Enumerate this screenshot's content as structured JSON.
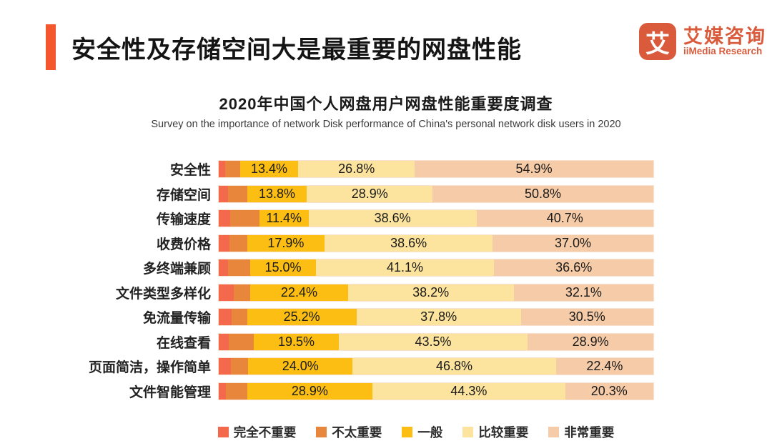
{
  "header": {
    "title": "安全性及存储空间大是最重要的网盘性能",
    "accent_color": "#F4572E"
  },
  "logo": {
    "icon_char": "艾",
    "name_cn": "艾媒咨询",
    "name_en": "iiMedia Research",
    "color": "#D95B3C"
  },
  "chart_data": {
    "type": "bar",
    "orientation": "horizontal",
    "stacked": true,
    "title": "2020年中国个人网盘用户网盘性能重要度调查",
    "subtitle": "Survey on the importance of network Disk performance of China's personal network disk users in 2020",
    "categories": [
      "安全性",
      "存储空间",
      "传输速度",
      "收费价格",
      "多终端兼顾",
      "文件类型多样化",
      "免流量传输",
      "在线查看",
      "页面简洁，操作简单",
      "文件智能管理"
    ],
    "series": [
      {
        "name": "完全不重要",
        "color": "#F4694B",
        "labeled": false,
        "values": [
          1.4,
          2.2,
          2.6,
          2.4,
          2.1,
          3.5,
          2.9,
          2.3,
          2.8,
          1.6
        ]
      },
      {
        "name": "不太重要",
        "color": "#E8873C",
        "labeled": false,
        "values": [
          3.5,
          4.3,
          6.7,
          4.1,
          5.2,
          3.8,
          3.6,
          5.8,
          4.0,
          4.9
        ]
      },
      {
        "name": "一般",
        "color": "#FCBE12",
        "labeled": true,
        "values": [
          13.4,
          13.8,
          11.4,
          17.9,
          15.0,
          22.4,
          25.2,
          19.5,
          24.0,
          28.9
        ]
      },
      {
        "name": "比较重要",
        "color": "#FDE49E",
        "labeled": true,
        "values": [
          26.8,
          28.9,
          38.6,
          38.6,
          41.1,
          38.2,
          37.8,
          43.5,
          46.8,
          44.3
        ]
      },
      {
        "name": "非常重要",
        "color": "#F6CBA7",
        "labeled": true,
        "values": [
          54.9,
          50.8,
          40.7,
          37.0,
          36.6,
          32.1,
          30.5,
          28.9,
          22.4,
          20.3
        ]
      }
    ],
    "value_label_format": "percent_one_decimal",
    "xlim": [
      0,
      100
    ],
    "grid": false,
    "legend_position": "bottom"
  }
}
